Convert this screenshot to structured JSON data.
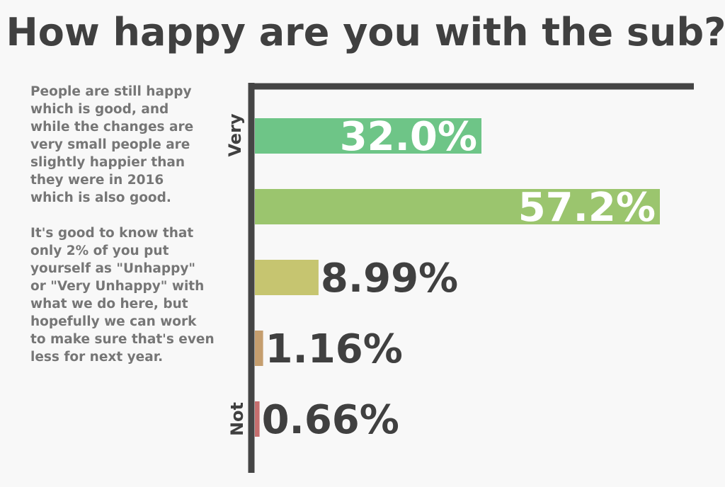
{
  "chart_data": {
    "type": "bar",
    "orientation": "horizontal",
    "title": "How happy are you with the sub?",
    "categories": [
      "",
      "",
      "",
      "",
      ""
    ],
    "values": [
      32.0,
      57.2,
      8.99,
      1.16,
      0.66
    ],
    "value_labels": [
      "32.0%",
      "57.2%",
      "8.99%",
      "1.16%",
      "0.66%"
    ],
    "colors": [
      "#6ec587",
      "#9bc56e",
      "#c6c570",
      "#c59e6e",
      "#c56e6e"
    ],
    "axis_end_labels": {
      "top": "Very",
      "bottom": "Not"
    },
    "xlim": [
      0,
      66
    ],
    "grid": false,
    "legend": "none"
  },
  "annotation": {
    "paragraph1": [
      "People are still happy",
      "which is good, and",
      "while the changes are",
      "very small people are",
      "slightly happier than",
      "they were in 2016",
      "which is also good."
    ],
    "paragraph2": [
      "It's good to know that",
      "only 2% of you put",
      "yourself as \"Unhappy\"",
      "or \"Very Unhappy\" with",
      "what we do here, but",
      "hopefully we can work",
      "to make sure that's even",
      "less for next year."
    ]
  },
  "colors": {
    "background": "#f8f8f8",
    "axis": "#454545",
    "text_dark": "#404040",
    "text_muted": "#767676",
    "label_inside": "#ffffff"
  }
}
